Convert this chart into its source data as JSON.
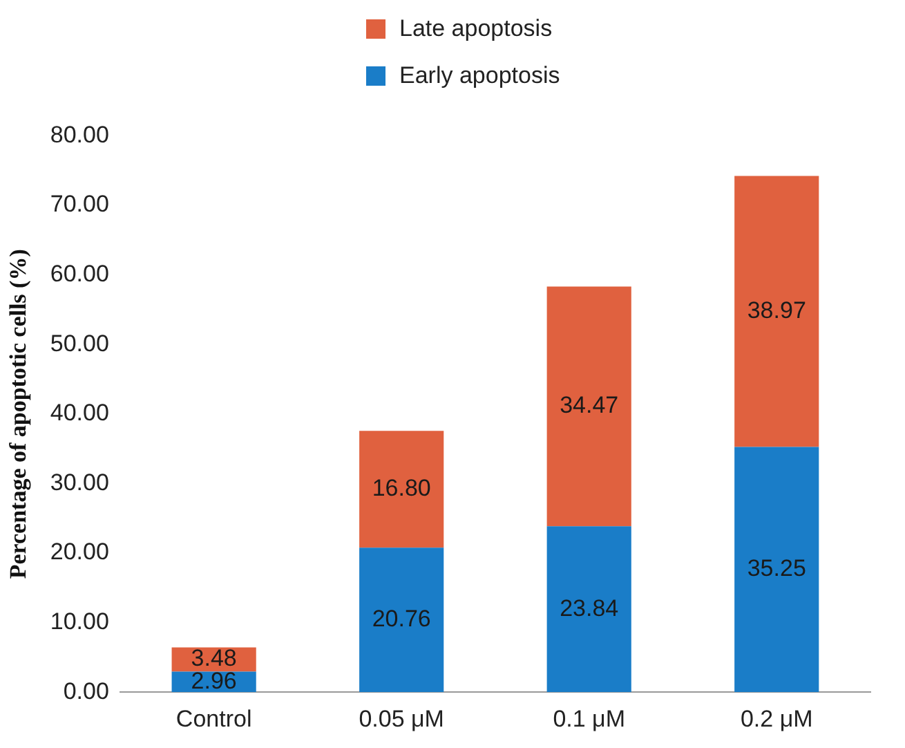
{
  "chart_data": {
    "type": "bar",
    "stacked": true,
    "ylabel": "Percentage of apoptotic cells (%)",
    "categories": [
      "Control",
      "0.05 μM",
      "0.1 μM",
      "0.2 μM"
    ],
    "series": [
      {
        "name": "Early apoptosis",
        "color": "#1a7dc8",
        "values": [
          2.96,
          20.76,
          23.84,
          35.25
        ],
        "value_labels": [
          "2.96",
          "20.76",
          "23.84",
          "35.25"
        ]
      },
      {
        "name": "Late apoptosis",
        "color": "#e0613f",
        "values": [
          3.48,
          16.8,
          34.47,
          38.97
        ],
        "value_labels": [
          "3.48",
          "16.80",
          "34.47",
          "38.97"
        ]
      }
    ],
    "ylim": [
      0,
      80
    ],
    "yticks": [
      {
        "value": 0,
        "label": "0.00"
      },
      {
        "value": 10,
        "label": "10.00"
      },
      {
        "value": 20,
        "label": "20.00"
      },
      {
        "value": 30,
        "label": "30.00"
      },
      {
        "value": 40,
        "label": "40.00"
      },
      {
        "value": 50,
        "label": "50.00"
      },
      {
        "value": 60,
        "label": "60.00"
      },
      {
        "value": 70,
        "label": "70.00"
      },
      {
        "value": 80,
        "label": "80.00"
      }
    ],
    "grid": false,
    "legend": "top"
  }
}
